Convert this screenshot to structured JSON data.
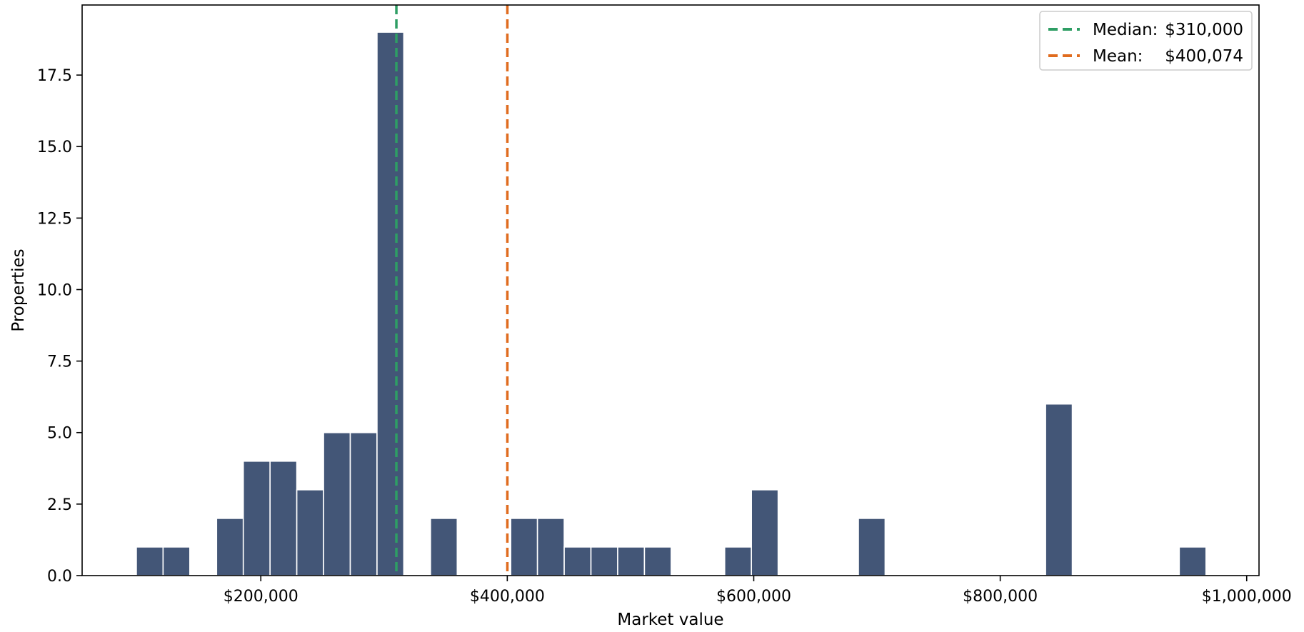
{
  "chart_data": {
    "type": "bar",
    "title": "",
    "xlabel": "Market value",
    "ylabel": "Properties",
    "xlim": [
      55000,
      1010000
    ],
    "ylim": [
      0,
      19.95
    ],
    "grid": false,
    "legend_position": "top-right",
    "bin_width": 21700,
    "x_ticks": [
      {
        "value": 200000,
        "label": "$200,000"
      },
      {
        "value": 400000,
        "label": "$400,000"
      },
      {
        "value": 600000,
        "label": "$600,000"
      },
      {
        "value": 800000,
        "label": "$800,000"
      },
      {
        "value": 1000000,
        "label": "$1,000,000"
      }
    ],
    "y_ticks": [
      {
        "value": 0,
        "label": "0.0"
      },
      {
        "value": 2.5,
        "label": "2.5"
      },
      {
        "value": 5,
        "label": "5.0"
      },
      {
        "value": 7.5,
        "label": "7.5"
      },
      {
        "value": 10,
        "label": "10.0"
      },
      {
        "value": 12.5,
        "label": "12.5"
      },
      {
        "value": 15,
        "label": "15.0"
      },
      {
        "value": 17.5,
        "label": "17.5"
      }
    ],
    "bins": [
      {
        "start": 99000,
        "count": 1
      },
      {
        "start": 120700,
        "count": 1
      },
      {
        "start": 142400,
        "count": 0
      },
      {
        "start": 164100,
        "count": 2
      },
      {
        "start": 185800,
        "count": 4
      },
      {
        "start": 207500,
        "count": 4
      },
      {
        "start": 229200,
        "count": 3
      },
      {
        "start": 250900,
        "count": 5
      },
      {
        "start": 272600,
        "count": 5
      },
      {
        "start": 294300,
        "count": 19
      },
      {
        "start": 316000,
        "count": 0
      },
      {
        "start": 337700,
        "count": 2
      },
      {
        "start": 359400,
        "count": 0
      },
      {
        "start": 381100,
        "count": 0
      },
      {
        "start": 402800,
        "count": 2
      },
      {
        "start": 424500,
        "count": 2
      },
      {
        "start": 446200,
        "count": 1
      },
      {
        "start": 467900,
        "count": 1
      },
      {
        "start": 489600,
        "count": 1
      },
      {
        "start": 511300,
        "count": 1
      },
      {
        "start": 533000,
        "count": 0
      },
      {
        "start": 554700,
        "count": 0
      },
      {
        "start": 576400,
        "count": 1
      },
      {
        "start": 598100,
        "count": 3
      },
      {
        "start": 619800,
        "count": 0
      },
      {
        "start": 641500,
        "count": 0
      },
      {
        "start": 663200,
        "count": 0
      },
      {
        "start": 684900,
        "count": 2
      },
      {
        "start": 706600,
        "count": 0
      },
      {
        "start": 728300,
        "count": 0
      },
      {
        "start": 750000,
        "count": 0
      },
      {
        "start": 771700,
        "count": 0
      },
      {
        "start": 793400,
        "count": 0
      },
      {
        "start": 815100,
        "count": 0
      },
      {
        "start": 836800,
        "count": 6
      },
      {
        "start": 858500,
        "count": 0
      },
      {
        "start": 880200,
        "count": 0
      },
      {
        "start": 901900,
        "count": 0
      },
      {
        "start": 923600,
        "count": 0
      },
      {
        "start": 945300,
        "count": 1
      }
    ],
    "reference_lines": [
      {
        "name": "median",
        "value": 310000,
        "color": "#2e9e64",
        "label_key": "Median:",
        "label_value": "$310,000"
      },
      {
        "name": "mean",
        "value": 400074,
        "color": "#e06c1f",
        "label_key": "Mean:",
        "label_value": "$400,074"
      }
    ],
    "colors": {
      "bar_fill": "#435677",
      "bar_edge": "#ffffff",
      "axis": "#000000"
    }
  }
}
